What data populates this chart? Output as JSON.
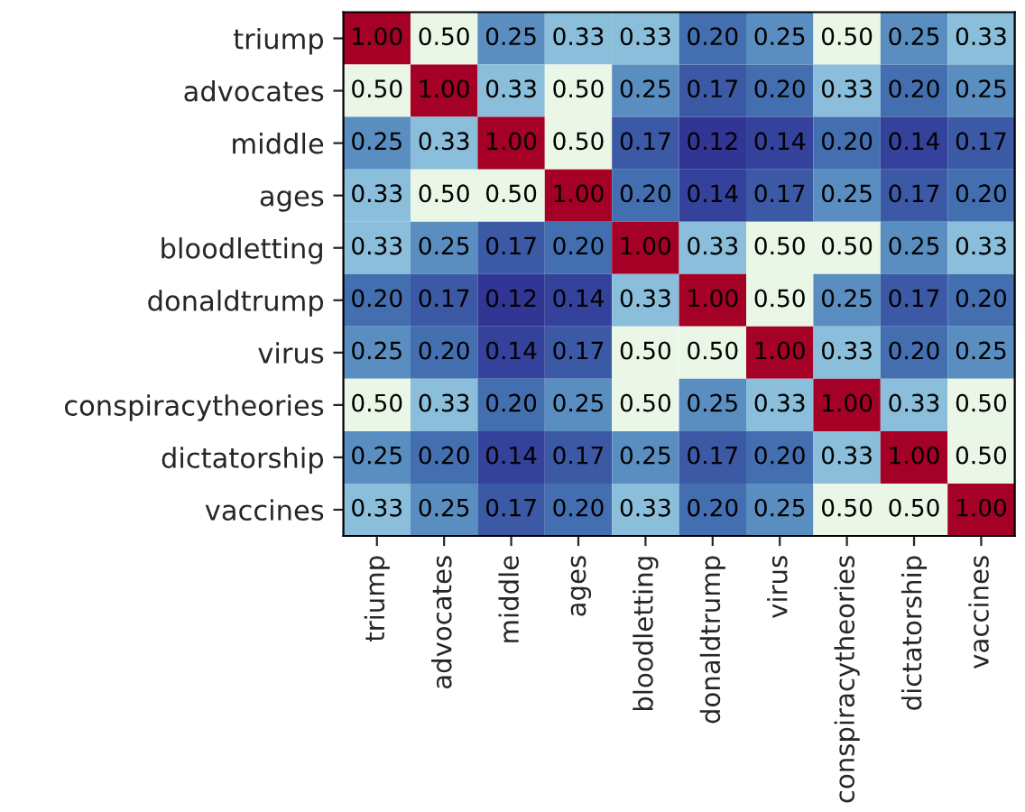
{
  "chart_data": {
    "type": "heatmap",
    "categories": [
      "triump",
      "advocates",
      "middle",
      "ages",
      "bloodletting",
      "donaldtrump",
      "virus",
      "conspiracytheories",
      "dictatorship",
      "vaccines"
    ],
    "y_categories": [
      "triump",
      "advocates",
      "middle",
      "ages",
      "bloodletting",
      "donaldtrump",
      "virus",
      "conspiracytheories",
      "dictatorship",
      "vaccines"
    ],
    "cells": [
      [
        1.0,
        0.5,
        0.25,
        0.33,
        0.33,
        0.2,
        0.25,
        0.5,
        0.25,
        0.33
      ],
      [
        0.5,
        1.0,
        0.33,
        0.5,
        0.25,
        0.17,
        0.2,
        0.33,
        0.2,
        0.25
      ],
      [
        0.25,
        0.33,
        1.0,
        0.5,
        0.17,
        0.12,
        0.14,
        0.2,
        0.14,
        0.17
      ],
      [
        0.33,
        0.5,
        0.5,
        1.0,
        0.2,
        0.14,
        0.17,
        0.25,
        0.17,
        0.2
      ],
      [
        0.33,
        0.25,
        0.17,
        0.2,
        1.0,
        0.33,
        0.5,
        0.5,
        0.25,
        0.33
      ],
      [
        0.2,
        0.17,
        0.12,
        0.14,
        0.33,
        1.0,
        0.5,
        0.25,
        0.17,
        0.2
      ],
      [
        0.25,
        0.2,
        0.14,
        0.17,
        0.5,
        0.5,
        1.0,
        0.33,
        0.2,
        0.25
      ],
      [
        0.5,
        0.33,
        0.2,
        0.25,
        0.5,
        0.25,
        0.33,
        1.0,
        0.33,
        0.5
      ],
      [
        0.25,
        0.2,
        0.14,
        0.17,
        0.25,
        0.17,
        0.2,
        0.33,
        1.0,
        0.5
      ],
      [
        0.33,
        0.25,
        0.17,
        0.2,
        0.33,
        0.2,
        0.25,
        0.5,
        0.5,
        1.0
      ]
    ],
    "cell_labels": [
      [
        "1.00",
        "0.50",
        "0.25",
        "0.33",
        "0.33",
        "0.20",
        "0.25",
        "0.50",
        "0.25",
        "0.33"
      ],
      [
        "0.50",
        "1.00",
        "0.33",
        "0.50",
        "0.25",
        "0.17",
        "0.20",
        "0.33",
        "0.20",
        "0.25"
      ],
      [
        "0.25",
        "0.33",
        "1.00",
        "0.50",
        "0.17",
        "0.12",
        "0.14",
        "0.20",
        "0.14",
        "0.17"
      ],
      [
        "0.33",
        "0.50",
        "0.50",
        "1.00",
        "0.20",
        "0.14",
        "0.17",
        "0.25",
        "0.17",
        "0.20"
      ],
      [
        "0.33",
        "0.25",
        "0.17",
        "0.20",
        "1.00",
        "0.33",
        "0.50",
        "0.50",
        "0.25",
        "0.33"
      ],
      [
        "0.20",
        "0.17",
        "0.12",
        "0.14",
        "0.33",
        "1.00",
        "0.50",
        "0.25",
        "0.17",
        "0.20"
      ],
      [
        "0.25",
        "0.20",
        "0.14",
        "0.17",
        "0.50",
        "0.50",
        "1.00",
        "0.33",
        "0.20",
        "0.25"
      ],
      [
        "0.50",
        "0.33",
        "0.20",
        "0.25",
        "0.50",
        "0.25",
        "0.33",
        "1.00",
        "0.33",
        "0.50"
      ],
      [
        "0.25",
        "0.20",
        "0.14",
        "0.17",
        "0.25",
        "0.17",
        "0.20",
        "0.33",
        "1.00",
        "0.50"
      ],
      [
        "0.33",
        "0.25",
        "0.17",
        "0.20",
        "0.33",
        "0.20",
        "0.25",
        "0.50",
        "0.50",
        "1.00"
      ]
    ]
  }
}
